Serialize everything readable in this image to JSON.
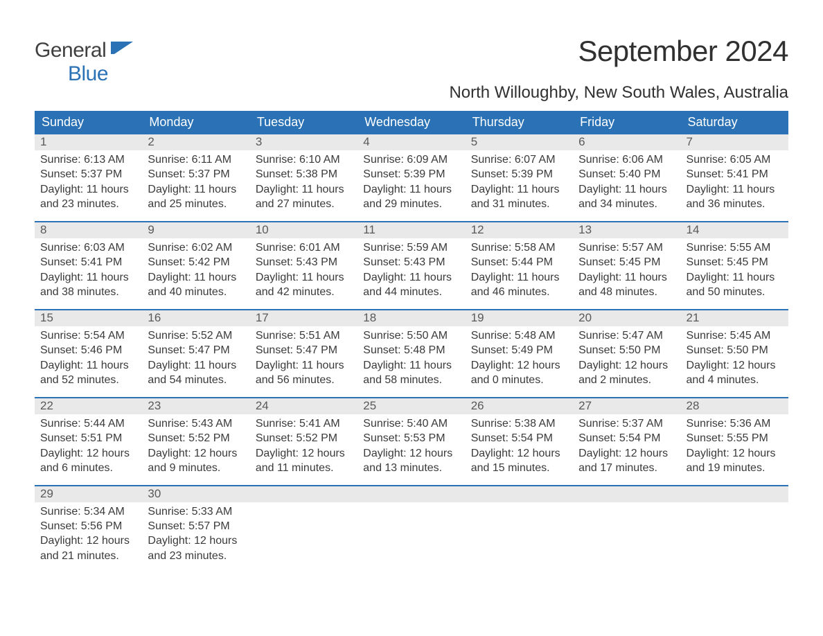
{
  "logo": {
    "line1": "General",
    "line2": "Blue",
    "flag_color": "#2a72b5"
  },
  "title": {
    "month": "September 2024"
  },
  "location": "North Willoughby, New South Wales, Australia",
  "colors": {
    "header_bg": "#2a72b5",
    "header_text": "#ffffff",
    "daynum_bg": "#e9e9e9",
    "text": "#3a3a3a"
  },
  "weekday_headers": [
    "Sunday",
    "Monday",
    "Tuesday",
    "Wednesday",
    "Thursday",
    "Friday",
    "Saturday"
  ],
  "weeks": [
    [
      {
        "day": "1",
        "sunrise": "Sunrise: 6:13 AM",
        "sunset": "Sunset: 5:37 PM",
        "daylight1": "Daylight: 11 hours",
        "daylight2": "and 23 minutes."
      },
      {
        "day": "2",
        "sunrise": "Sunrise: 6:11 AM",
        "sunset": "Sunset: 5:37 PM",
        "daylight1": "Daylight: 11 hours",
        "daylight2": "and 25 minutes."
      },
      {
        "day": "3",
        "sunrise": "Sunrise: 6:10 AM",
        "sunset": "Sunset: 5:38 PM",
        "daylight1": "Daylight: 11 hours",
        "daylight2": "and 27 minutes."
      },
      {
        "day": "4",
        "sunrise": "Sunrise: 6:09 AM",
        "sunset": "Sunset: 5:39 PM",
        "daylight1": "Daylight: 11 hours",
        "daylight2": "and 29 minutes."
      },
      {
        "day": "5",
        "sunrise": "Sunrise: 6:07 AM",
        "sunset": "Sunset: 5:39 PM",
        "daylight1": "Daylight: 11 hours",
        "daylight2": "and 31 minutes."
      },
      {
        "day": "6",
        "sunrise": "Sunrise: 6:06 AM",
        "sunset": "Sunset: 5:40 PM",
        "daylight1": "Daylight: 11 hours",
        "daylight2": "and 34 minutes."
      },
      {
        "day": "7",
        "sunrise": "Sunrise: 6:05 AM",
        "sunset": "Sunset: 5:41 PM",
        "daylight1": "Daylight: 11 hours",
        "daylight2": "and 36 minutes."
      }
    ],
    [
      {
        "day": "8",
        "sunrise": "Sunrise: 6:03 AM",
        "sunset": "Sunset: 5:41 PM",
        "daylight1": "Daylight: 11 hours",
        "daylight2": "and 38 minutes."
      },
      {
        "day": "9",
        "sunrise": "Sunrise: 6:02 AM",
        "sunset": "Sunset: 5:42 PM",
        "daylight1": "Daylight: 11 hours",
        "daylight2": "and 40 minutes."
      },
      {
        "day": "10",
        "sunrise": "Sunrise: 6:01 AM",
        "sunset": "Sunset: 5:43 PM",
        "daylight1": "Daylight: 11 hours",
        "daylight2": "and 42 minutes."
      },
      {
        "day": "11",
        "sunrise": "Sunrise: 5:59 AM",
        "sunset": "Sunset: 5:43 PM",
        "daylight1": "Daylight: 11 hours",
        "daylight2": "and 44 minutes."
      },
      {
        "day": "12",
        "sunrise": "Sunrise: 5:58 AM",
        "sunset": "Sunset: 5:44 PM",
        "daylight1": "Daylight: 11 hours",
        "daylight2": "and 46 minutes."
      },
      {
        "day": "13",
        "sunrise": "Sunrise: 5:57 AM",
        "sunset": "Sunset: 5:45 PM",
        "daylight1": "Daylight: 11 hours",
        "daylight2": "and 48 minutes."
      },
      {
        "day": "14",
        "sunrise": "Sunrise: 5:55 AM",
        "sunset": "Sunset: 5:45 PM",
        "daylight1": "Daylight: 11 hours",
        "daylight2": "and 50 minutes."
      }
    ],
    [
      {
        "day": "15",
        "sunrise": "Sunrise: 5:54 AM",
        "sunset": "Sunset: 5:46 PM",
        "daylight1": "Daylight: 11 hours",
        "daylight2": "and 52 minutes."
      },
      {
        "day": "16",
        "sunrise": "Sunrise: 5:52 AM",
        "sunset": "Sunset: 5:47 PM",
        "daylight1": "Daylight: 11 hours",
        "daylight2": "and 54 minutes."
      },
      {
        "day": "17",
        "sunrise": "Sunrise: 5:51 AM",
        "sunset": "Sunset: 5:47 PM",
        "daylight1": "Daylight: 11 hours",
        "daylight2": "and 56 minutes."
      },
      {
        "day": "18",
        "sunrise": "Sunrise: 5:50 AM",
        "sunset": "Sunset: 5:48 PM",
        "daylight1": "Daylight: 11 hours",
        "daylight2": "and 58 minutes."
      },
      {
        "day": "19",
        "sunrise": "Sunrise: 5:48 AM",
        "sunset": "Sunset: 5:49 PM",
        "daylight1": "Daylight: 12 hours",
        "daylight2": "and 0 minutes."
      },
      {
        "day": "20",
        "sunrise": "Sunrise: 5:47 AM",
        "sunset": "Sunset: 5:50 PM",
        "daylight1": "Daylight: 12 hours",
        "daylight2": "and 2 minutes."
      },
      {
        "day": "21",
        "sunrise": "Sunrise: 5:45 AM",
        "sunset": "Sunset: 5:50 PM",
        "daylight1": "Daylight: 12 hours",
        "daylight2": "and 4 minutes."
      }
    ],
    [
      {
        "day": "22",
        "sunrise": "Sunrise: 5:44 AM",
        "sunset": "Sunset: 5:51 PM",
        "daylight1": "Daylight: 12 hours",
        "daylight2": "and 6 minutes."
      },
      {
        "day": "23",
        "sunrise": "Sunrise: 5:43 AM",
        "sunset": "Sunset: 5:52 PM",
        "daylight1": "Daylight: 12 hours",
        "daylight2": "and 9 minutes."
      },
      {
        "day": "24",
        "sunrise": "Sunrise: 5:41 AM",
        "sunset": "Sunset: 5:52 PM",
        "daylight1": "Daylight: 12 hours",
        "daylight2": "and 11 minutes."
      },
      {
        "day": "25",
        "sunrise": "Sunrise: 5:40 AM",
        "sunset": "Sunset: 5:53 PM",
        "daylight1": "Daylight: 12 hours",
        "daylight2": "and 13 minutes."
      },
      {
        "day": "26",
        "sunrise": "Sunrise: 5:38 AM",
        "sunset": "Sunset: 5:54 PM",
        "daylight1": "Daylight: 12 hours",
        "daylight2": "and 15 minutes."
      },
      {
        "day": "27",
        "sunrise": "Sunrise: 5:37 AM",
        "sunset": "Sunset: 5:54 PM",
        "daylight1": "Daylight: 12 hours",
        "daylight2": "and 17 minutes."
      },
      {
        "day": "28",
        "sunrise": "Sunrise: 5:36 AM",
        "sunset": "Sunset: 5:55 PM",
        "daylight1": "Daylight: 12 hours",
        "daylight2": "and 19 minutes."
      }
    ],
    [
      {
        "day": "29",
        "sunrise": "Sunrise: 5:34 AM",
        "sunset": "Sunset: 5:56 PM",
        "daylight1": "Daylight: 12 hours",
        "daylight2": "and 21 minutes."
      },
      {
        "day": "30",
        "sunrise": "Sunrise: 5:33 AM",
        "sunset": "Sunset: 5:57 PM",
        "daylight1": "Daylight: 12 hours",
        "daylight2": "and 23 minutes."
      },
      null,
      null,
      null,
      null,
      null
    ]
  ]
}
